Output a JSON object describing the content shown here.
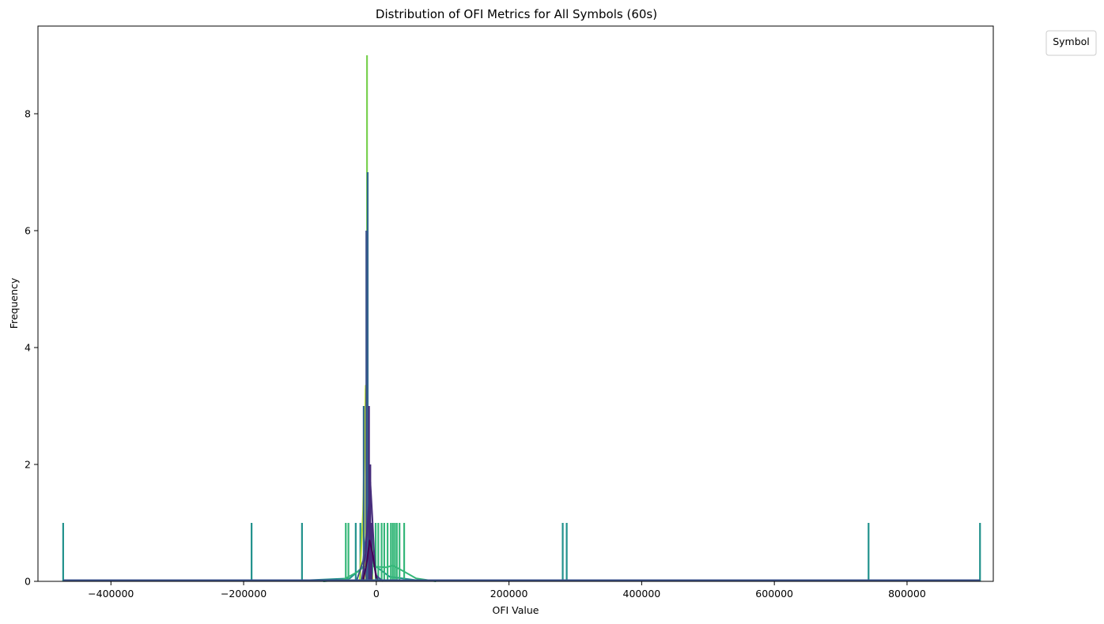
{
  "chart_data": {
    "type": "histogram",
    "title": "Distribution of OFI Metrics for All Symbols (60s)",
    "xlabel": "OFI Value",
    "ylabel": "Frequency",
    "xlim": [
      -510000,
      930000
    ],
    "ylim": [
      0,
      9.5
    ],
    "x_ticks": [
      -400000,
      -200000,
      0,
      200000,
      400000,
      600000,
      800000
    ],
    "x_tick_labels": [
      "−400000",
      "−200000",
      "0",
      "200000",
      "400000",
      "600000",
      "800000"
    ],
    "y_ticks": [
      0,
      2,
      4,
      6,
      8
    ],
    "y_tick_labels": [
      "0",
      "2",
      "4",
      "6",
      "8"
    ],
    "grid": false,
    "legend": {
      "title": "Symbol",
      "placement": "outside-top-right",
      "entries": []
    },
    "colors": {
      "teal": "#21918c",
      "green": "#35b779",
      "lightgreen": "#7ad151",
      "yellow": "#bddf26",
      "navy": "#3b528b",
      "indigo": "#472d7b",
      "blue": "#31688e",
      "purple": "#440154"
    },
    "series": [
      {
        "color": "teal",
        "bars": [
          {
            "x": -472000,
            "y": 1
          },
          {
            "x": -188000,
            "y": 1
          },
          {
            "x": -112000,
            "y": 1
          },
          {
            "x": -31000,
            "y": 1
          },
          {
            "x": -24000,
            "y": 1
          },
          {
            "x": -14000,
            "y": 1
          },
          {
            "x": 281000,
            "y": 1
          },
          {
            "x": 287000,
            "y": 1
          },
          {
            "x": 742000,
            "y": 1
          },
          {
            "x": 910000,
            "y": 1
          }
        ],
        "kde": [
          [
            -472000,
            0.02
          ],
          [
            -100000,
            0.02
          ],
          [
            -40000,
            0.05
          ],
          [
            -20000,
            0.25
          ],
          [
            -10000,
            0.4
          ],
          [
            0,
            0.25
          ],
          [
            20000,
            0.08
          ],
          [
            60000,
            0.02
          ],
          [
            910000,
            0.02
          ]
        ]
      },
      {
        "color": "green",
        "bars": [
          {
            "x": -46000,
            "y": 1
          },
          {
            "x": -42000,
            "y": 1
          },
          {
            "x": -6000,
            "y": 1
          },
          {
            "x": -1000,
            "y": 1
          },
          {
            "x": 3000,
            "y": 1
          },
          {
            "x": 8000,
            "y": 1
          },
          {
            "x": 12000,
            "y": 1
          },
          {
            "x": 17000,
            "y": 1
          },
          {
            "x": 22000,
            "y": 1
          },
          {
            "x": 25000,
            "y": 1
          },
          {
            "x": 28000,
            "y": 1
          },
          {
            "x": 31000,
            "y": 1
          },
          {
            "x": 35000,
            "y": 1
          },
          {
            "x": 42000,
            "y": 1
          }
        ],
        "kde": [
          [
            -80000,
            0.0
          ],
          [
            -50000,
            0.03
          ],
          [
            -30000,
            0.15
          ],
          [
            -15000,
            0.28
          ],
          [
            0,
            0.25
          ],
          [
            15000,
            0.24
          ],
          [
            25000,
            0.27
          ],
          [
            40000,
            0.18
          ],
          [
            60000,
            0.05
          ],
          [
            90000,
            0.0
          ]
        ]
      },
      {
        "color": "lightgreen",
        "bars": [
          {
            "x": -14000,
            "y": 9
          }
        ],
        "kde": []
      },
      {
        "color": "yellow",
        "bars": [
          {
            "x": -16000,
            "y": 3.3
          }
        ],
        "kde": [
          [
            -25000,
            0.0
          ],
          [
            -20000,
            1.2
          ],
          [
            -16000,
            3.35
          ],
          [
            -13000,
            2.0
          ],
          [
            -9000,
            0.3
          ],
          [
            -5000,
            0.0
          ]
        ]
      },
      {
        "color": "blue",
        "bars": [
          {
            "x": -13000,
            "y": 7
          },
          {
            "x": -19000,
            "y": 3
          }
        ],
        "kde": []
      },
      {
        "color": "navy",
        "bars": [
          {
            "x": -15000,
            "y": 6
          }
        ],
        "kde": [
          [
            -30000,
            0.0
          ],
          [
            -20000,
            0.35
          ],
          [
            -14000,
            0.9
          ],
          [
            -9000,
            0.6
          ],
          [
            0,
            0.1
          ],
          [
            10000,
            0.0
          ]
        ]
      },
      {
        "color": "indigo",
        "bars": [
          {
            "x": -11000,
            "y": 3
          },
          {
            "x": -9000,
            "y": 2
          },
          {
            "x": -7000,
            "y": 1
          }
        ],
        "kde": [
          [
            -22000,
            0.0
          ],
          [
            -16000,
            0.5
          ],
          [
            -12000,
            1.2
          ],
          [
            -9000,
            1.7
          ],
          [
            -6000,
            1.1
          ],
          [
            -2000,
            0.2
          ],
          [
            2000,
            0.0
          ]
        ]
      },
      {
        "color": "purple",
        "bars": [],
        "kde": [
          [
            -20000,
            0.0
          ],
          [
            -14000,
            0.35
          ],
          [
            -10000,
            0.7
          ],
          [
            -6000,
            0.5
          ],
          [
            0,
            0.05
          ]
        ]
      }
    ]
  }
}
